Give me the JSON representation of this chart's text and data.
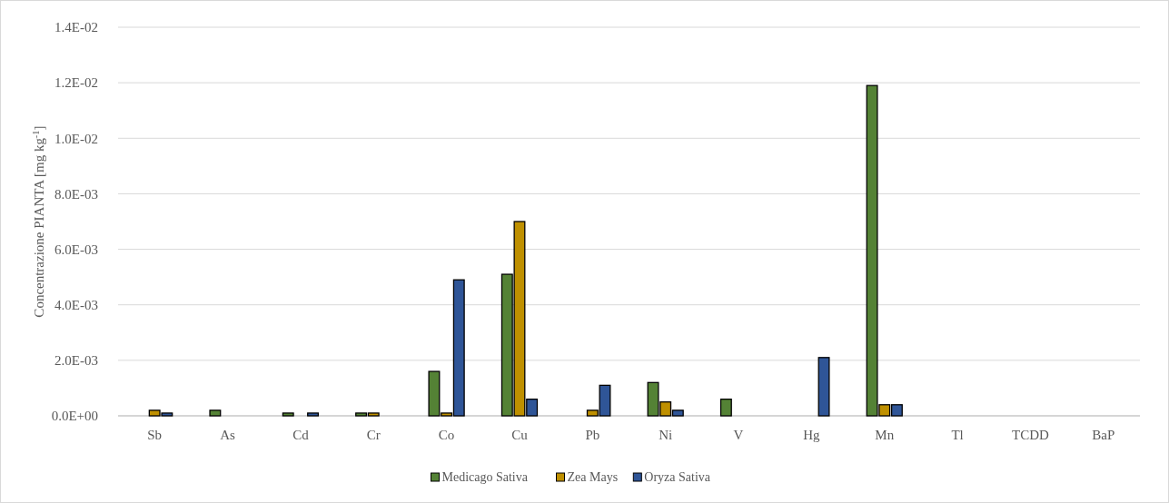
{
  "chart_data": {
    "type": "bar",
    "ylabel": "Concentrazione PIANTA [mg kg$^{-1}$]",
    "categories": [
      "Sb",
      "As",
      "Cd",
      "Cr",
      "Co",
      "Cu",
      "Pb",
      "Ni",
      "V",
      "Hg",
      "Mn",
      "Tl",
      "TCDD",
      "BaP"
    ],
    "series": [
      {
        "name": "Medicago Sativa",
        "color": "#548235",
        "values": [
          0,
          0.0002,
          0.0001,
          0.0001,
          0.0016,
          0.0051,
          0,
          0.0012,
          0.0006,
          0,
          0.0119,
          0,
          0,
          0
        ]
      },
      {
        "name": "Zea Mays",
        "color": "#bf9000",
        "values": [
          0.0002,
          0,
          0,
          0.0001,
          0.0001,
          0.007,
          0.0002,
          0.0005,
          0,
          0,
          0.0004,
          0,
          0,
          0
        ]
      },
      {
        "name": "Oryza Sativa",
        "color": "#2f5597",
        "values": [
          0.0001,
          0,
          0.0001,
          0,
          0.0049,
          0.0006,
          0.0011,
          0.0002,
          0,
          0.0021,
          0.0004,
          0,
          0,
          0
        ]
      }
    ],
    "ylim": [
      0,
      0.014
    ],
    "yticks": [
      {
        "value": 0,
        "label": "0.0E+00"
      },
      {
        "value": 0.002,
        "label": "2.0E-03"
      },
      {
        "value": 0.004,
        "label": "4.0E-03"
      },
      {
        "value": 0.006,
        "label": "6.0E-03"
      },
      {
        "value": 0.008,
        "label": "8.0E-03"
      },
      {
        "value": 0.01,
        "label": "1.0E-02"
      },
      {
        "value": 0.012,
        "label": "1.2E-02"
      },
      {
        "value": 0.014,
        "label": "1.4E-02"
      }
    ],
    "grid": "y",
    "legend": "bottom"
  }
}
